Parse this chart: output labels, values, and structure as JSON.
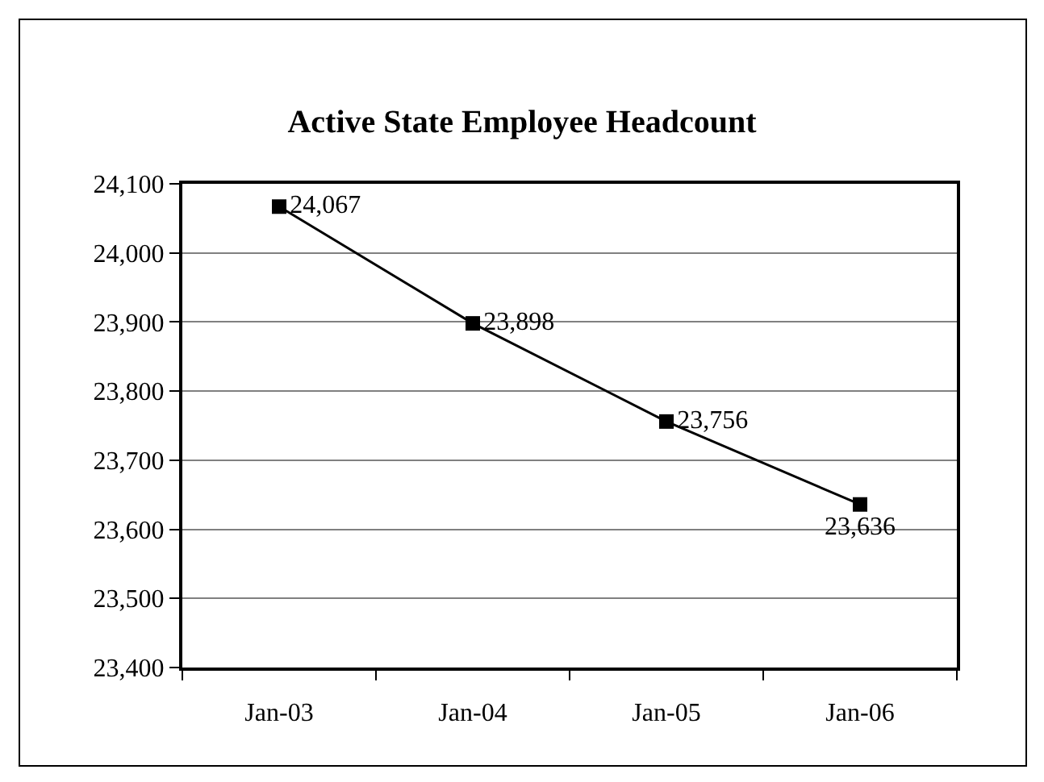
{
  "chart_data": {
    "type": "line",
    "title": "Active State Employee Headcount",
    "categories": [
      "Jan-03",
      "Jan-04",
      "Jan-05",
      "Jan-06"
    ],
    "values": [
      24067,
      23898,
      23756,
      23636
    ],
    "color": "#000000",
    "value_labels": [
      "24,067",
      "23,898",
      "23,756",
      "23,636"
    ],
    "ylim": [
      23400,
      24100
    ],
    "yticks": [
      {
        "value": 23400,
        "label": "23,400"
      },
      {
        "value": 23500,
        "label": "23,500"
      },
      {
        "value": 23600,
        "label": "23,600"
      },
      {
        "value": 23700,
        "label": "23,700"
      },
      {
        "value": 23800,
        "label": "23,800"
      },
      {
        "value": 23900,
        "label": "23,900"
      },
      {
        "value": 24000,
        "label": "24,000"
      },
      {
        "value": 24100,
        "label": "24,100"
      }
    ],
    "grid": "y",
    "marker": "square",
    "line_style": "solid"
  }
}
